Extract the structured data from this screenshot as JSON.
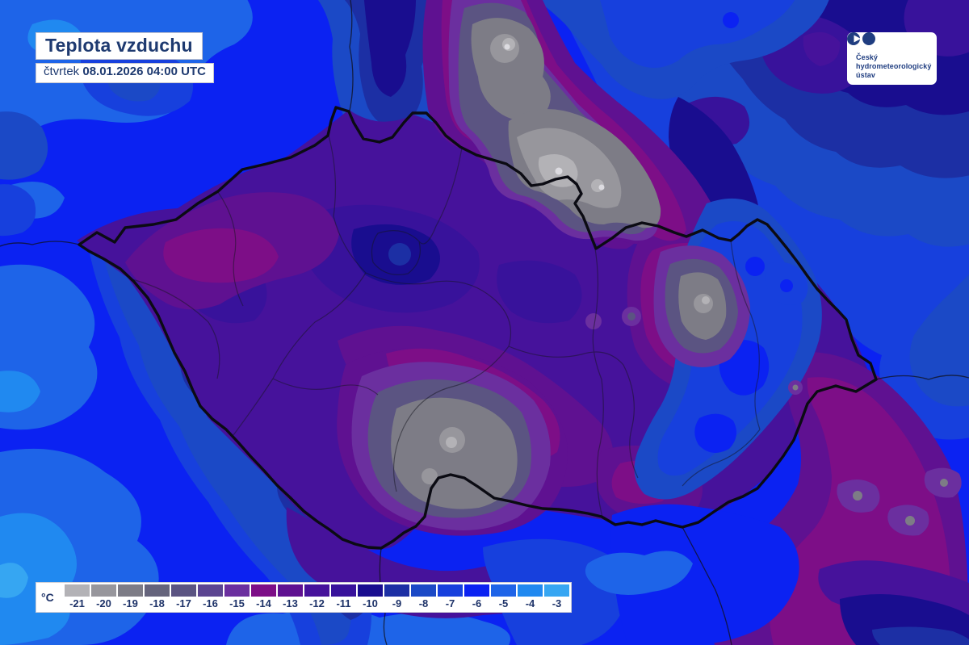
{
  "header": {
    "title": "Teplota vzduchu",
    "day": "čtvrtek",
    "datetime": "08.01.2026 04:00 UTC"
  },
  "logo": {
    "lines": [
      "Český",
      "hydrometeorologický",
      "ústav"
    ]
  },
  "legend": {
    "unit": "°C",
    "stops": [
      {
        "label": "-21",
        "value": -21,
        "color": "#b3b2b6"
      },
      {
        "label": "-20",
        "value": -20,
        "color": "#97969c"
      },
      {
        "label": "-19",
        "value": -19,
        "color": "#7d7c86"
      },
      {
        "label": "-18",
        "value": -18,
        "color": "#65647c"
      },
      {
        "label": "-17",
        "value": -17,
        "color": "#5b5482"
      },
      {
        "label": "-16",
        "value": -16,
        "color": "#5c4591"
      },
      {
        "label": "-15",
        "value": -15,
        "color": "#6b2f9f"
      },
      {
        "label": "-14",
        "value": -14,
        "color": "#7d0e87"
      },
      {
        "label": "-13",
        "value": -13,
        "color": "#5f1191"
      },
      {
        "label": "-12",
        "value": -12,
        "color": "#46129b"
      },
      {
        "label": "-11",
        "value": -11,
        "color": "#38129b"
      },
      {
        "label": "-10",
        "value": -10,
        "color": "#190d8f"
      },
      {
        "label": "-9",
        "value": -9,
        "color": "#1c2fa4"
      },
      {
        "label": "-8",
        "value": -8,
        "color": "#1b49c6"
      },
      {
        "label": "-7",
        "value": -7,
        "color": "#1740dd"
      },
      {
        "label": "-6",
        "value": -6,
        "color": "#0b22f2"
      },
      {
        "label": "-5",
        "value": -5,
        "color": "#1e64e8"
      },
      {
        "label": "-4",
        "value": -4,
        "color": "#2089f0"
      },
      {
        "label": "-3",
        "value": -3,
        "color": "#36a6f2"
      }
    ]
  },
  "map": {
    "border_color": "#0b0b13",
    "region_line_color": "#15151f",
    "foreign_line_color": "#101018",
    "frost_spot_color": "#dcdbe0"
  }
}
